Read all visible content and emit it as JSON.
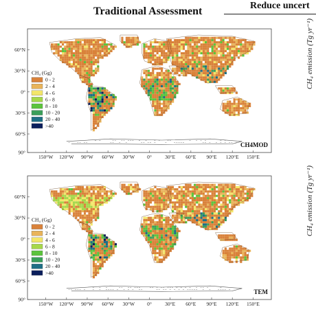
{
  "header": {
    "title": "Traditional Assessment",
    "title_right": "Reduce uncert"
  },
  "side_labels": {
    "top": "CH₄ emission (Tg yr⁻¹)",
    "bottom": "CH₄ emission (Tg yr⁻¹)"
  },
  "lat_labels": [
    "60°N",
    "30°N",
    "0°",
    "30°S",
    "60°S",
    "90°"
  ],
  "lon_labels": [
    "150°W",
    "120°W",
    "90°W",
    "60°W",
    "30°W",
    "0°",
    "30°E",
    "60°E",
    "90°E",
    "120°E",
    "150°E"
  ],
  "legend": {
    "title": "CH₄ (Gg)",
    "classes": [
      {
        "label": "0 - 2",
        "color": "#d9823a"
      },
      {
        "label": "2 - 4",
        "color": "#e9b45a"
      },
      {
        "label": "4 - 6",
        "color": "#f3e66a"
      },
      {
        "label": "6 - 8",
        "color": "#a6d84a"
      },
      {
        "label": "8 - 10",
        "color": "#5cc43c"
      },
      {
        "label": "10 - 20",
        "color": "#3a9f5a"
      },
      {
        "label": "20 - 40",
        "color": "#1f6f86"
      },
      {
        "label": ">40",
        "color": "#0b1f5c"
      }
    ]
  },
  "maps": [
    {
      "model": "CH4MOD"
    },
    {
      "model": "TEM"
    }
  ]
}
